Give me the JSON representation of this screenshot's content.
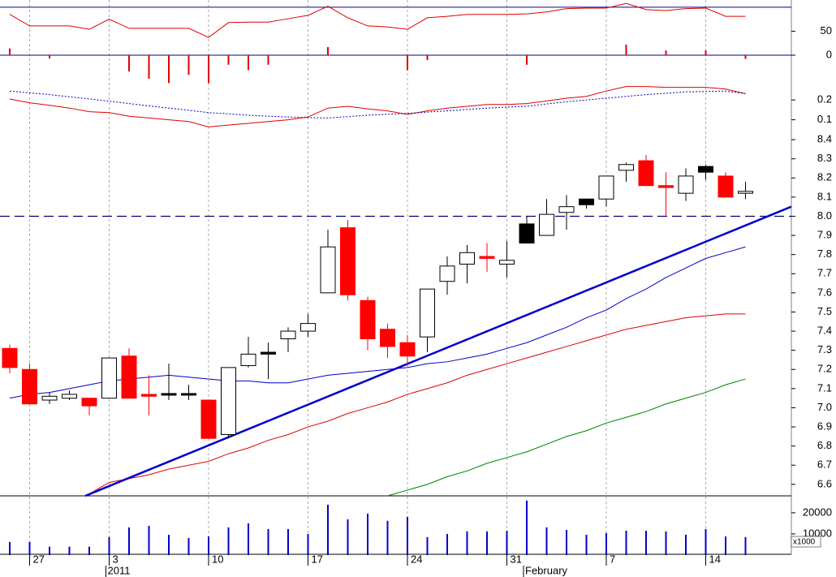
{
  "chart_data": [
    {
      "type": "line",
      "ylim": [
        -71,
        115
      ],
      "yticks": [
        0,
        50
      ],
      "reference_lines": [
        {
          "value": 100,
          "color": "#00008b"
        },
        {
          "value": 0,
          "color": "#00008b"
        }
      ],
      "series": [
        {
          "color": "#e00000",
          "values": [
            85,
            61,
            61,
            61,
            54,
            75,
            56,
            56,
            56,
            56,
            37,
            68,
            69,
            69,
            76,
            83,
            102,
            78,
            61,
            59,
            54,
            78,
            81,
            85,
            85,
            85,
            86,
            90,
            97,
            98,
            98,
            108,
            95,
            93,
            97,
            98,
            81,
            81
          ]
        }
      ],
      "bars": {
        "color": "#e00000",
        "values": [
          14,
          0,
          -7,
          0,
          0,
          0,
          -34,
          -49,
          -58,
          -41,
          -58,
          -20,
          -31,
          -20,
          0,
          0,
          17,
          0,
          0,
          0,
          -31,
          -10,
          0,
          0,
          0,
          0,
          -20,
          0,
          0,
          0,
          0,
          22,
          0,
          10,
          0,
          10,
          0,
          -8
        ]
      }
    },
    {
      "type": "line",
      "ylim": [
        0,
        0.295
      ],
      "yticks": [
        0.1,
        0.2
      ],
      "series": [
        {
          "color": "#e00000",
          "values": [
            0.205,
            0.186,
            0.173,
            0.159,
            0.141,
            0.136,
            0.118,
            0.109,
            0.1,
            0.091,
            0.064,
            0.073,
            0.082,
            0.091,
            0.1,
            0.114,
            0.159,
            0.168,
            0.155,
            0.145,
            0.127,
            0.145,
            0.159,
            0.168,
            0.177,
            0.177,
            0.182,
            0.195,
            0.209,
            0.218,
            0.245,
            0.268,
            0.268,
            0.264,
            0.264,
            0.264,
            0.255,
            0.232
          ]
        },
        {
          "color": "#0000cc",
          "dash": true,
          "values": [
            0.245,
            0.236,
            0.227,
            0.216,
            0.205,
            0.194,
            0.182,
            0.17,
            0.159,
            0.148,
            0.136,
            0.13,
            0.123,
            0.118,
            0.114,
            0.111,
            0.109,
            0.116,
            0.123,
            0.128,
            0.132,
            0.139,
            0.145,
            0.152,
            0.159,
            0.164,
            0.168,
            0.18,
            0.191,
            0.2,
            0.209,
            0.218,
            0.227,
            0.234,
            0.241,
            0.243,
            0.245,
            0.232
          ]
        }
      ]
    },
    {
      "type": "candlestick",
      "ylim": [
        6.54,
        8.43
      ],
      "yticks": [
        8.4,
        8.3,
        8.2,
        8.1,
        {
          "value": 8,
          "label": "8.0"
        },
        7.9,
        7.8,
        7.7,
        7.6,
        7.5,
        7.4,
        7.3,
        7.2,
        7.1,
        {
          "value": 7,
          "label": "7.0"
        },
        6.9,
        6.8,
        6.7,
        6.6
      ],
      "open": [
        7.31,
        7.2,
        7.04,
        7.05,
        7.05,
        7.05,
        7.27,
        7.07,
        7.07,
        7.07,
        7.04,
        6.86,
        7.22,
        7.28,
        7.36,
        7.4,
        7.6,
        7.94,
        7.56,
        7.41,
        7.34,
        7.37,
        7.66,
        7.75,
        7.79,
        7.75,
        7.86,
        7.9,
        8.02,
        8.06,
        8.09,
        8.24,
        8.29,
        8.16,
        8.12,
        8.23,
        8.21,
        8.12
      ],
      "high": [
        7.33,
        7.23,
        7.08,
        7.09,
        7.05,
        7.26,
        7.31,
        7.17,
        7.23,
        7.12,
        7.04,
        7.21,
        7.37,
        7.34,
        7.42,
        7.49,
        7.93,
        7.98,
        7.58,
        7.44,
        7.38,
        7.62,
        7.79,
        7.85,
        7.86,
        7.87,
        8.0,
        8.09,
        8.11,
        8.09,
        8.21,
        8.28,
        8.32,
        8.23,
        8.25,
        8.27,
        8.23,
        8.18
      ],
      "low": [
        7.18,
        7.02,
        7.02,
        7.04,
        6.96,
        7.05,
        7.05,
        6.96,
        7.04,
        7.04,
        6.84,
        6.84,
        7.21,
        7.15,
        7.29,
        7.37,
        7.6,
        7.56,
        7.3,
        7.26,
        7.22,
        7.29,
        7.59,
        7.65,
        7.71,
        7.68,
        7.86,
        7.9,
        7.93,
        8.04,
        8.05,
        8.18,
        8.16,
        8.0,
        8.08,
        8.19,
        8.1,
        8.09
      ],
      "close": [
        7.21,
        7.02,
        7.06,
        7.07,
        7.01,
        7.26,
        7.05,
        7.06,
        7.065,
        7.07,
        6.84,
        7.21,
        7.28,
        7.29,
        7.4,
        7.44,
        7.84,
        7.59,
        7.36,
        7.32,
        7.27,
        7.62,
        7.74,
        7.81,
        7.78,
        7.77,
        7.96,
        8.01,
        8.05,
        8.09,
        8.21,
        8.27,
        8.16,
        8.15,
        8.21,
        8.26,
        8.1,
        8.13
      ],
      "candle_colors": [
        "#ff0000",
        "#ff0000",
        "#ffffff",
        "#ffffff",
        "#ff0000",
        "#ffffff",
        "#ff0000",
        "#ff0000",
        "#000000",
        "#000000",
        "#ff0000",
        "#ffffff",
        "#ffffff",
        "#000000",
        "#ffffff",
        "#ffffff",
        "#ffffff",
        "#ff0000",
        "#ff0000",
        "#ff0000",
        "#ff0000",
        "#ffffff",
        "#ffffff",
        "#ffffff",
        "#ff0000",
        "#ffffff",
        "#000000",
        "#ffffff",
        "#ffffff",
        "#000000",
        "#ffffff",
        "#ffffff",
        "#ff0000",
        "#ff0000",
        "#ffffff",
        "#000000",
        "#ff0000",
        "#ffffff"
      ],
      "series": [
        {
          "color": "#0000cc",
          "values": [
            7.05,
            7.07,
            7.08,
            7.1,
            7.12,
            7.14,
            7.15,
            7.16,
            7.17,
            7.16,
            7.15,
            7.14,
            7.14,
            7.13,
            7.13,
            7.15,
            7.17,
            7.18,
            7.19,
            7.2,
            7.21,
            7.23,
            7.24,
            7.26,
            7.28,
            7.31,
            7.34,
            7.38,
            7.42,
            7.47,
            7.51,
            7.57,
            7.62,
            7.68,
            7.73,
            7.78,
            7.81,
            7.84
          ]
        },
        {
          "color": "#e00000",
          "values": [
            null,
            null,
            null,
            null,
            6.55,
            6.61,
            6.63,
            6.65,
            6.68,
            6.7,
            6.72,
            6.76,
            6.79,
            6.83,
            6.86,
            6.9,
            6.93,
            6.97,
            7.0,
            7.03,
            7.07,
            7.1,
            7.13,
            7.17,
            7.2,
            7.23,
            7.26,
            7.29,
            7.32,
            7.35,
            7.38,
            7.41,
            7.43,
            7.45,
            7.47,
            7.48,
            7.49,
            7.49
          ]
        },
        {
          "color": "#008000",
          "values": [
            null,
            null,
            null,
            null,
            null,
            null,
            null,
            null,
            null,
            null,
            null,
            null,
            null,
            null,
            null,
            null,
            null,
            null,
            null,
            6.54,
            6.57,
            6.6,
            6.64,
            6.67,
            6.71,
            6.74,
            6.77,
            6.81,
            6.85,
            6.88,
            6.92,
            6.95,
            6.98,
            7.02,
            7.05,
            7.08,
            7.12,
            7.15
          ]
        }
      ],
      "reference_lines": [
        {
          "value": 8,
          "color": "#000080",
          "dash": true
        }
      ],
      "trendline": {
        "color": "#0000cc",
        "x": [
          3.8,
          39.3
        ],
        "values": [
          6.54,
          8.05
        ]
      }
    },
    {
      "type": "bar",
      "ylim": [
        0,
        28000
      ],
      "yticks": [
        20000,
        10000
      ],
      "unit_label": "x1000",
      "color": "#0000cc",
      "values": [
        6200,
        6200,
        4000,
        4000,
        4000,
        8500,
        13100,
        13800,
        9600,
        8100,
        8800,
        13100,
        15000,
        12300,
        12300,
        10000,
        23800,
        16900,
        19600,
        16200,
        18100,
        8500,
        10000,
        11200,
        11200,
        11500,
        25800,
        13100,
        11900,
        9600,
        10400,
        11500,
        11500,
        11200,
        9600,
        12300,
        8800,
        8500
      ],
      "categories": [
        null,
        "27",
        null,
        null,
        null,
        "3",
        null,
        null,
        null,
        null,
        "10",
        null,
        null,
        null,
        null,
        "17",
        null,
        null,
        null,
        null,
        "24",
        null,
        null,
        null,
        null,
        "31",
        null,
        null,
        null,
        null,
        "7",
        null,
        null,
        null,
        null,
        "14",
        null,
        null
      ],
      "periods": [
        null,
        null,
        null,
        null,
        null,
        "2011",
        null,
        null,
        null,
        null,
        null,
        null,
        null,
        null,
        null,
        null,
        null,
        null,
        null,
        null,
        null,
        null,
        null,
        null,
        null,
        null,
        "February",
        null,
        null,
        null,
        null,
        null,
        null,
        null,
        null,
        null,
        null,
        null
      ]
    }
  ]
}
